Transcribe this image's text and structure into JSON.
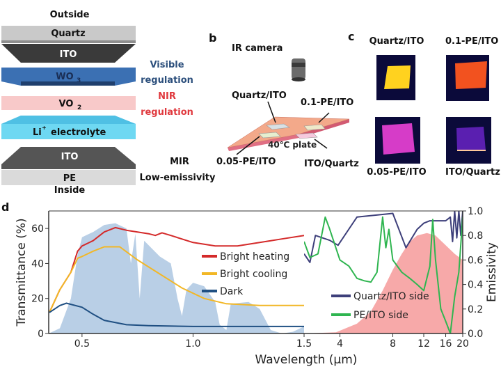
{
  "panel_a": {
    "label": "",
    "outside": "Outside",
    "inside": "Inside",
    "layers": {
      "quartz": "Quartz",
      "ito_top": "ITO",
      "wo3": "WO",
      "wo3_sub": "3",
      "vo2": "VO",
      "vo2_sub": "2",
      "electrolyte_sup": "+",
      "electrolyte_li": "Li",
      "electrolyte": "electrolyte",
      "ito_bottom": "ITO",
      "pe": "PE"
    },
    "annotations": {
      "visible_1": "Visible",
      "visible_2": "regulation",
      "nir_1": "NIR",
      "nir_2": "regulation",
      "mir_1": "MIR",
      "mir_2": "Low-emissivity"
    },
    "colors": {
      "visible": "#2c4f7c",
      "nir": "#e0393e",
      "wo3": "#3b70b3",
      "vo2": "#f8c9c9",
      "electrolyte": "#6ed8f2",
      "ito": "#3a3a3a",
      "quartz": "#c9c9c9"
    }
  },
  "panel_b": {
    "label": "b",
    "camera": "IR camera",
    "plate": "40℃ plate",
    "samples": [
      "Quartz/ITO",
      "0.1-PE/ITO",
      "0.05-PE/ITO",
      "ITO/Quartz"
    ]
  },
  "panel_c": {
    "label": "c",
    "images": [
      {
        "title": "Quartz/ITO",
        "color": "#ffd21f"
      },
      {
        "title": "0.1-PE/ITO",
        "color": "#f2521f"
      },
      {
        "title": "0.05-PE/ITO",
        "color": "#d63cc8"
      },
      {
        "title": "ITO/Quartz",
        "color": "#5a1fb0"
      }
    ]
  },
  "panel_d": {
    "label": "d",
    "xlabel": "Wavelength (µm)",
    "ylabel_left": "Transmittance (%)",
    "ylabel_right": "Emissivity"
  },
  "chart_data": [
    {
      "type": "line",
      "xlabel": "Wavelength (µm)",
      "ylabel": "Transmittance (%)",
      "xlim": [
        0.35,
        1.5
      ],
      "ylim": [
        0,
        70
      ],
      "xticks": [
        "0.5",
        "1.0",
        "1.5"
      ],
      "xtick_values": [
        0.5,
        1.0,
        1.5
      ],
      "yticks": [
        "0",
        "20",
        "40",
        "60"
      ],
      "ytick_values": [
        0,
        20,
        40,
        60
      ],
      "legend_placement": "center-right",
      "background_area": {
        "color": "#b9cfe6",
        "points": [
          [
            0.35,
            0
          ],
          [
            0.4,
            3
          ],
          [
            0.45,
            20
          ],
          [
            0.48,
            45
          ],
          [
            0.5,
            55
          ],
          [
            0.55,
            58
          ],
          [
            0.6,
            62
          ],
          [
            0.65,
            63
          ],
          [
            0.7,
            60
          ],
          [
            0.72,
            40
          ],
          [
            0.74,
            57
          ],
          [
            0.76,
            20
          ],
          [
            0.78,
            53
          ],
          [
            0.85,
            44
          ],
          [
            0.9,
            40
          ],
          [
            0.93,
            20
          ],
          [
            0.95,
            10
          ],
          [
            0.97,
            25
          ],
          [
            1.0,
            29
          ],
          [
            1.05,
            27
          ],
          [
            1.1,
            18
          ],
          [
            1.12,
            5
          ],
          [
            1.15,
            2
          ],
          [
            1.17,
            17
          ],
          [
            1.25,
            18
          ],
          [
            1.3,
            14
          ],
          [
            1.35,
            2
          ],
          [
            1.4,
            0
          ],
          [
            1.45,
            1
          ],
          [
            1.5,
            4
          ]
        ]
      },
      "series": [
        {
          "name": "Bright heating",
          "color": "#d42a2a",
          "points": [
            [
              0.353,
              12
            ],
            [
              0.4,
              25
            ],
            [
              0.45,
              35
            ],
            [
              0.48,
              47
            ],
            [
              0.5,
              50
            ],
            [
              0.55,
              53
            ],
            [
              0.6,
              58
            ],
            [
              0.65,
              60.5
            ],
            [
              0.7,
              59
            ],
            [
              0.8,
              57
            ],
            [
              0.83,
              56
            ],
            [
              0.86,
              57.5
            ],
            [
              0.9,
              56
            ],
            [
              1.0,
              52
            ],
            [
              1.1,
              50
            ],
            [
              1.2,
              50
            ],
            [
              1.3,
              52
            ],
            [
              1.4,
              54
            ],
            [
              1.5,
              56
            ]
          ]
        },
        {
          "name": "Bright cooling",
          "color": "#f2b726",
          "points": [
            [
              0.353,
              12
            ],
            [
              0.4,
              25
            ],
            [
              0.45,
              35
            ],
            [
              0.48,
              43
            ],
            [
              0.5,
              44
            ],
            [
              0.55,
              47
            ],
            [
              0.6,
              49.5
            ],
            [
              0.67,
              49.5
            ],
            [
              0.75,
              42
            ],
            [
              0.85,
              34
            ],
            [
              0.95,
              26
            ],
            [
              1.05,
              20
            ],
            [
              1.15,
              17
            ],
            [
              1.3,
              16
            ],
            [
              1.5,
              16
            ]
          ]
        },
        {
          "name": "Dark",
          "color": "#1f4f82",
          "points": [
            [
              0.353,
              12
            ],
            [
              0.4,
              16
            ],
            [
              0.43,
              17.3
            ],
            [
              0.5,
              15
            ],
            [
              0.55,
              11
            ],
            [
              0.6,
              7.5
            ],
            [
              0.7,
              5
            ],
            [
              0.8,
              4.5
            ],
            [
              1.0,
              4
            ],
            [
              1.5,
              4
            ]
          ]
        }
      ]
    },
    {
      "type": "line",
      "xlabel": "Wavelength (µm)",
      "ylabel": "Emissivity",
      "xscale": "log",
      "xlim": [
        2.5,
        20
      ],
      "ylim": [
        0,
        1.0
      ],
      "xticks": [
        "4",
        "8",
        "12",
        "16",
        "20"
      ],
      "xtick_values": [
        4,
        8,
        12,
        16,
        20
      ],
      "yticks": [
        "0.0",
        "0.2",
        "0.4",
        "0.6",
        "0.8",
        "1.0"
      ],
      "ytick_values": [
        0,
        0.2,
        0.4,
        0.6,
        0.8,
        1.0
      ],
      "legend_placement": "bottom-left",
      "background_area": {
        "color": "#f7a9a9",
        "points": [
          [
            2.5,
            0
          ],
          [
            3.8,
            0.01
          ],
          [
            5,
            0.08
          ],
          [
            6,
            0.18
          ],
          [
            7,
            0.35
          ],
          [
            8,
            0.52
          ],
          [
            9,
            0.65
          ],
          [
            10,
            0.75
          ],
          [
            11,
            0.8
          ],
          [
            12.5,
            0.82
          ],
          [
            14,
            0.8
          ],
          [
            16,
            0.72
          ],
          [
            18,
            0.65
          ],
          [
            20,
            0.6
          ]
        ]
      },
      "series": [
        {
          "name": "Quartz/ITO side",
          "color": "#3d3f7a",
          "points": [
            [
              2.5,
              0.65
            ],
            [
              2.7,
              0.58
            ],
            [
              2.9,
              0.8
            ],
            [
              3.5,
              0.76
            ],
            [
              3.9,
              0.72
            ],
            [
              5,
              0.95
            ],
            [
              8,
              0.98
            ],
            [
              9.5,
              0.7
            ],
            [
              11,
              0.85
            ],
            [
              12,
              0.9
            ],
            [
              13,
              0.92
            ],
            [
              16,
              0.92
            ],
            [
              17,
              0.95
            ],
            [
              17.5,
              0.75
            ],
            [
              18,
              1.0
            ],
            [
              18.5,
              0.78
            ],
            [
              19,
              1.0
            ],
            [
              19.5,
              0.8
            ],
            [
              20,
              1.0
            ]
          ]
        },
        {
          "name": "PE/ITO side",
          "color": "#2fb550",
          "points": [
            [
              2.5,
              0.75
            ],
            [
              2.7,
              0.62
            ],
            [
              3,
              0.65
            ],
            [
              3.3,
              0.95
            ],
            [
              3.5,
              0.85
            ],
            [
              4,
              0.6
            ],
            [
              4.5,
              0.55
            ],
            [
              5,
              0.45
            ],
            [
              5.5,
              0.43
            ],
            [
              6,
              0.42
            ],
            [
              6.5,
              0.5
            ],
            [
              7,
              0.95
            ],
            [
              7.3,
              0.7
            ],
            [
              7.6,
              0.85
            ],
            [
              8,
              0.6
            ],
            [
              9,
              0.5
            ],
            [
              10,
              0.45
            ],
            [
              11,
              0.4
            ],
            [
              12,
              0.35
            ],
            [
              13,
              0.55
            ],
            [
              13.5,
              0.93
            ],
            [
              14,
              0.6
            ],
            [
              15,
              0.2
            ],
            [
              16,
              0.1
            ],
            [
              17,
              0
            ],
            [
              18,
              0.3
            ],
            [
              19,
              0.5
            ],
            [
              20,
              0.95
            ]
          ]
        }
      ]
    }
  ]
}
